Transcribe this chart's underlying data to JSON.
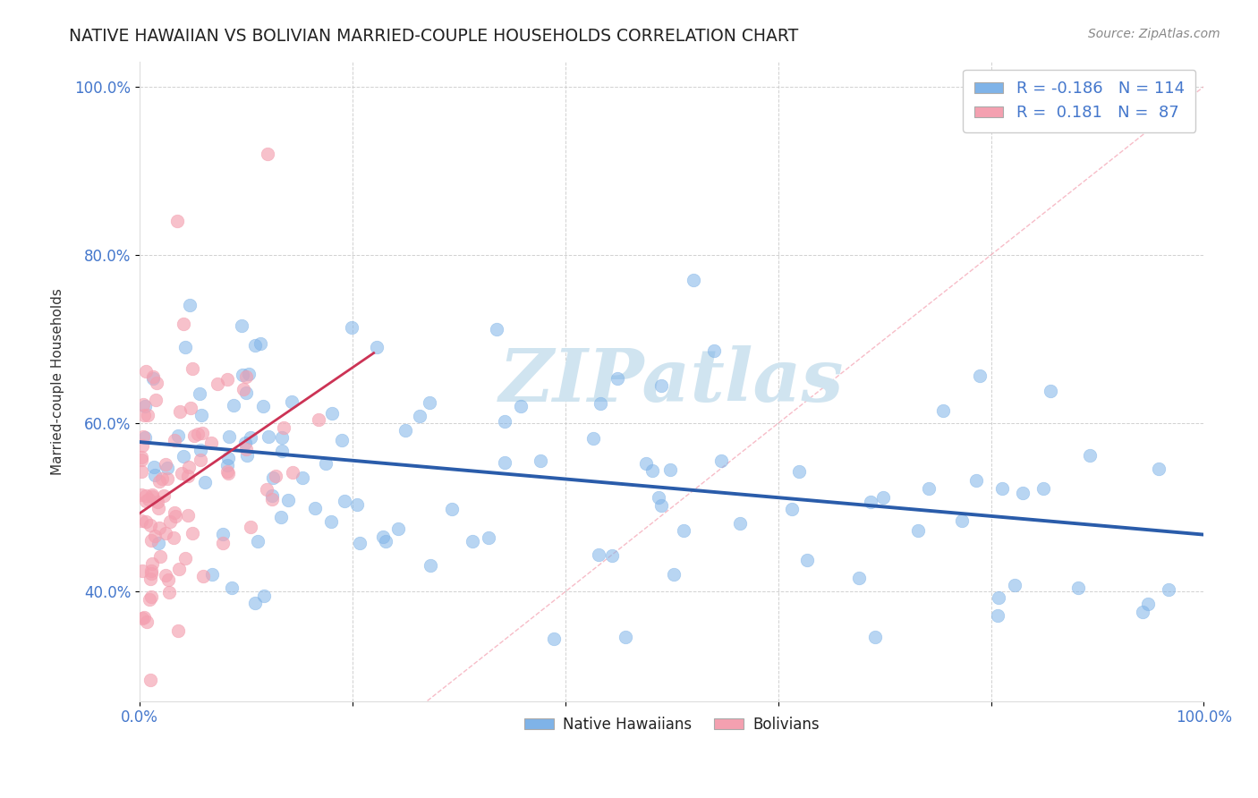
{
  "title": "NATIVE HAWAIIAN VS BOLIVIAN MARRIED-COUPLE HOUSEHOLDS CORRELATION CHART",
  "source": "Source: ZipAtlas.com",
  "ylabel": "Married-couple Households",
  "xlim": [
    0,
    1.0
  ],
  "ylim": [
    0.27,
    1.03
  ],
  "xticks": [
    0.0,
    0.2,
    0.4,
    0.6,
    0.8,
    1.0
  ],
  "yticks": [
    0.4,
    0.6,
    0.8,
    1.0
  ],
  "ytick_labels": [
    "40.0%",
    "60.0%",
    "80.0%",
    "100.0%"
  ],
  "xtick_labels": [
    "0.0%",
    "",
    "",
    "",
    "",
    "100.0%"
  ],
  "blue_color": "#7fb3e8",
  "pink_color": "#f4a0b0",
  "legend_blue_R": "-0.186",
  "legend_blue_N": "114",
  "legend_pink_R": "0.181",
  "legend_pink_N": "87",
  "trend_blue_color": "#2a5caa",
  "trend_pink_color": "#cc3355",
  "diag_color": "#f4a0b0",
  "watermark_color": "#d0e4f0",
  "background_color": "#ffffff",
  "tick_color": "#4477cc",
  "label_color": "#333333",
  "grid_color": "#cccccc",
  "title_color": "#222222",
  "source_color": "#888888"
}
